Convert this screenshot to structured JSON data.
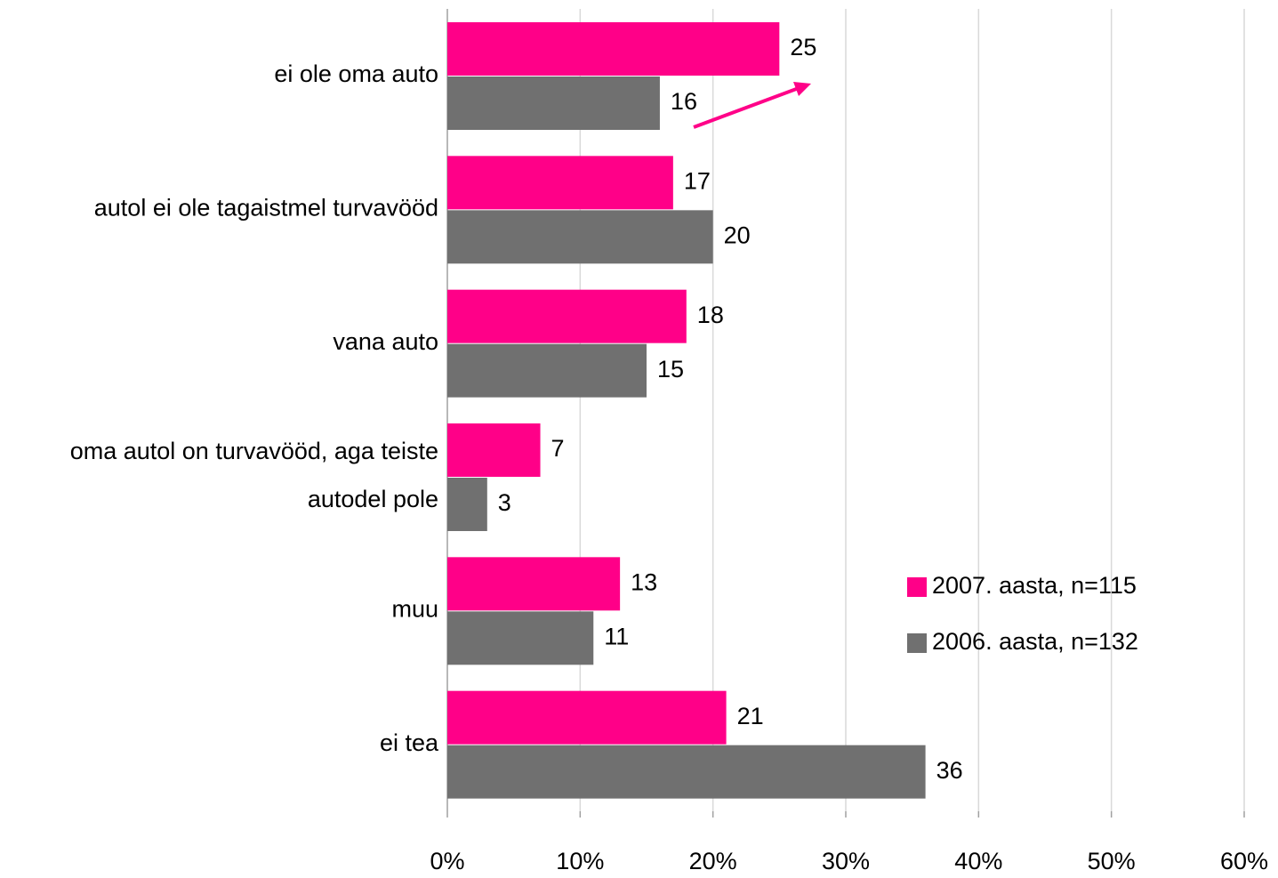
{
  "chart_data": {
    "type": "bar",
    "orientation": "horizontal",
    "categories": [
      "ei ole oma auto",
      "autol ei ole tagaistmel turvavööd",
      "vana auto",
      "oma autol on turvavööd, aga teiste autodel pole",
      "muu",
      "ei tea"
    ],
    "series": [
      {
        "name": "2007. aasta, n=115",
        "color": "#ff0088",
        "values": [
          25,
          17,
          18,
          7,
          13,
          21
        ]
      },
      {
        "name": "2006. aasta, n=132",
        "color": "#707070",
        "values": [
          16,
          20,
          15,
          3,
          11,
          36
        ]
      }
    ],
    "xlim": [
      0,
      60
    ],
    "xticks": [
      {
        "value": 0,
        "label": "0%"
      },
      {
        "value": 10,
        "label": "10%"
      },
      {
        "value": 20,
        "label": "20%"
      },
      {
        "value": 30,
        "label": "30%"
      },
      {
        "value": 40,
        "label": "40%"
      },
      {
        "value": 50,
        "label": "50%"
      },
      {
        "value": 60,
        "label": "60%"
      }
    ],
    "grid": true,
    "legend": "right"
  }
}
